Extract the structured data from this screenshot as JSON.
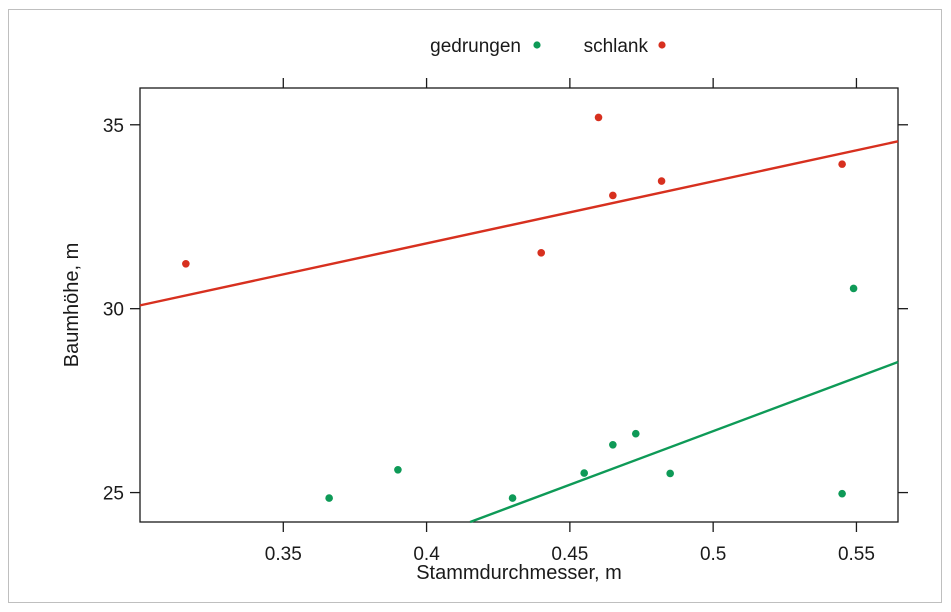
{
  "chart_data": {
    "type": "scatter",
    "title": "",
    "xlabel": "Stammdurchmesser, m",
    "ylabel": "Baumhöhe, m",
    "xlim": [
      0.3,
      0.5645
    ],
    "ylim": [
      24.2,
      36.0
    ],
    "x_ticks": [
      0.35,
      0.4,
      0.45,
      0.5,
      0.55
    ],
    "x_tick_labels": [
      "0.35",
      "0.4",
      "0.45",
      "0.5",
      "0.55"
    ],
    "y_ticks": [
      25,
      30,
      35
    ],
    "y_tick_labels": [
      "25",
      "30",
      "35"
    ],
    "grid": false,
    "legend_position": "top-center",
    "series": [
      {
        "name": "gedrungen",
        "color": "#0e9a57",
        "points": [
          {
            "x": 0.366,
            "y": 24.85
          },
          {
            "x": 0.39,
            "y": 25.62
          },
          {
            "x": 0.43,
            "y": 24.85
          },
          {
            "x": 0.455,
            "y": 25.53
          },
          {
            "x": 0.465,
            "y": 26.3
          },
          {
            "x": 0.473,
            "y": 26.6
          },
          {
            "x": 0.485,
            "y": 25.52
          },
          {
            "x": 0.545,
            "y": 24.97
          },
          {
            "x": 0.549,
            "y": 30.55
          }
        ],
        "fit": {
          "x": [
            0.4152,
            0.5645
          ],
          "y": [
            24.2,
            28.55
          ]
        }
      },
      {
        "name": "schlank",
        "color": "#d7301f",
        "points": [
          {
            "x": 0.316,
            "y": 31.22
          },
          {
            "x": 0.44,
            "y": 31.52
          },
          {
            "x": 0.46,
            "y": 35.2
          },
          {
            "x": 0.465,
            "y": 33.08
          },
          {
            "x": 0.482,
            "y": 33.47
          },
          {
            "x": 0.545,
            "y": 33.93
          }
        ],
        "fit": {
          "x": [
            0.3,
            0.5645
          ],
          "y": [
            30.09,
            34.55
          ]
        }
      }
    ]
  }
}
